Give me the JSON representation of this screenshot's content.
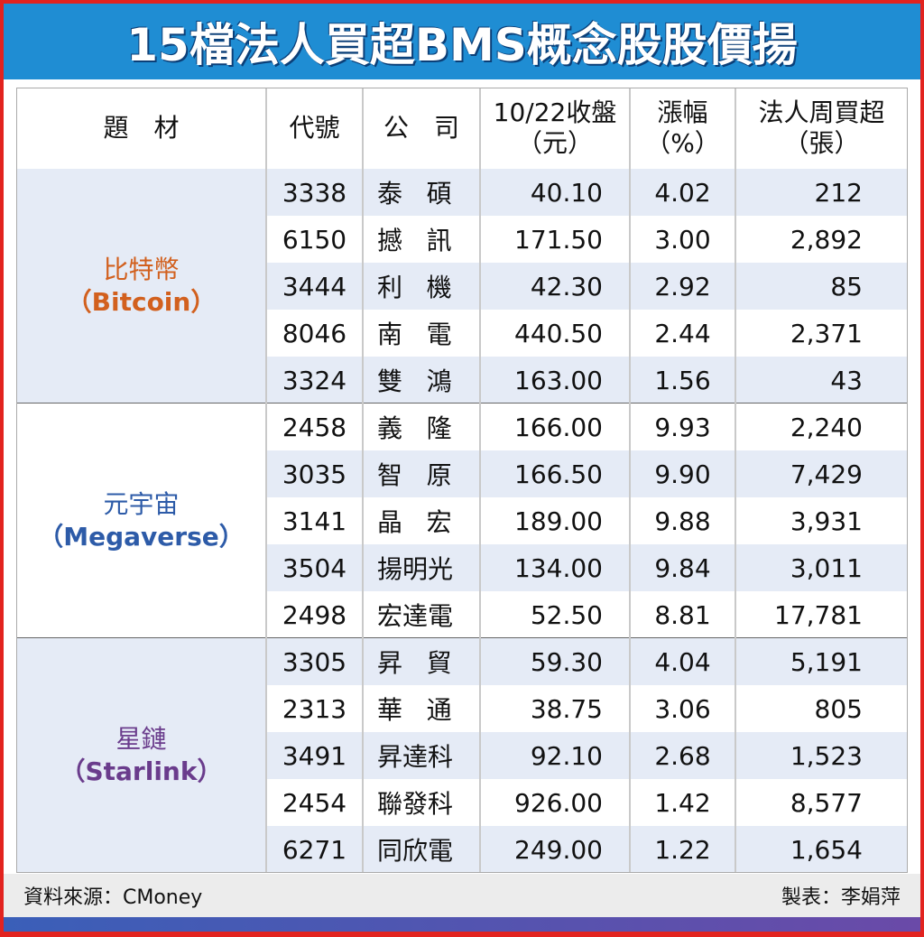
{
  "title": "15檔法人買超BMS概念股股價揚",
  "header": [
    [
      "題　材"
    ],
    [
      "代號"
    ],
    [
      "公　司"
    ],
    [
      "10/22收盤",
      "（元）"
    ],
    [
      "漲幅",
      "（%）"
    ],
    [
      "法人周買超",
      "（張）"
    ]
  ],
  "groups": [
    {
      "name": "比特幣",
      "en": "（Bitcoin）",
      "color": "#d2601e",
      "rows": [
        [
          "3338",
          "泰碩",
          "40.10",
          "4.02",
          "212"
        ],
        [
          "6150",
          "撼訊",
          "171.50",
          "3.00",
          "2,892"
        ],
        [
          "3444",
          "利機",
          "42.30",
          "2.92",
          "85"
        ],
        [
          "8046",
          "南電",
          "440.50",
          "2.44",
          "2,371"
        ],
        [
          "3324",
          "雙鴻",
          "163.00",
          "1.56",
          "43"
        ]
      ]
    },
    {
      "name": "元宇宙",
      "en": "（Megaverse）",
      "color": "#2d5ba8",
      "rows": [
        [
          "2458",
          "義隆",
          "166.00",
          "9.93",
          "2,240"
        ],
        [
          "3035",
          "智原",
          "166.50",
          "9.90",
          "7,429"
        ],
        [
          "3141",
          "晶宏",
          "189.00",
          "9.88",
          "3,931"
        ],
        [
          "3504",
          "揚明光",
          "134.00",
          "9.84",
          "3,011"
        ],
        [
          "2498",
          "宏達電",
          "52.50",
          "8.81",
          "17,781"
        ]
      ]
    },
    {
      "name": "星鏈",
      "en": "（Starlink）",
      "color": "#6a3c8c",
      "rows": [
        [
          "3305",
          "昇貿",
          "59.30",
          "4.04",
          "5,191"
        ],
        [
          "2313",
          "華通",
          "38.75",
          "3.06",
          "805"
        ],
        [
          "3491",
          "昇達科",
          "92.10",
          "2.68",
          "1,523"
        ],
        [
          "2454",
          "聯發科",
          "926.00",
          "1.42",
          "8,577"
        ],
        [
          "6271",
          "同欣電",
          "249.00",
          "1.22",
          "1,654"
        ]
      ]
    }
  ],
  "footer": {
    "source": "資料來源：CMoney",
    "maker": "製表：李娟萍"
  }
}
